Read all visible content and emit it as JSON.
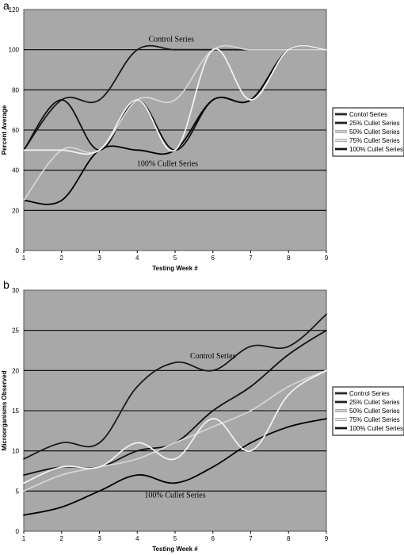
{
  "chart_data": [
    {
      "panel": "a",
      "type": "line",
      "title": "",
      "xlabel": "Testing Week #",
      "ylabel": "Percent Average",
      "xlim": [
        1,
        9
      ],
      "ylim": [
        0,
        120
      ],
      "xticks": [
        "1",
        "2",
        "3",
        "4",
        "5",
        "6",
        "7",
        "8",
        "9"
      ],
      "yticks": [
        "0",
        "20",
        "40",
        "60",
        "80",
        "100",
        "120"
      ],
      "grid": "horizontal",
      "legend_position": "right",
      "annotations": [
        {
          "text": "Control Series",
          "x": 4.9,
          "y": 104
        },
        {
          "text": "100% Cullet Series",
          "x": 4.8,
          "y": 42
        }
      ],
      "x": [
        1,
        2,
        3,
        4,
        5,
        6,
        7,
        8,
        9
      ],
      "series": [
        {
          "name": "Contol Series",
          "values": [
            50,
            75,
            75,
            100,
            100,
            100,
            100,
            100,
            100
          ],
          "color": "#1a1a1a"
        },
        {
          "name": "25% Cullet Series",
          "values": [
            50,
            75,
            50,
            75,
            50,
            75,
            75,
            100,
            100
          ],
          "color": "#101010"
        },
        {
          "name": "50% Cullet Series",
          "values": [
            25,
            50,
            50,
            75,
            75,
            100,
            100,
            100,
            100
          ],
          "color": "#d4d4d4"
        },
        {
          "name": "75% Cullet Series",
          "values": [
            50,
            50,
            50,
            75,
            50,
            100,
            75,
            100,
            100
          ],
          "color": "#f0f0f0"
        },
        {
          "name": "100% Cullet Series",
          "values": [
            25,
            25,
            50,
            50,
            50,
            75,
            75,
            100,
            100
          ],
          "color": "#000000"
        }
      ]
    },
    {
      "panel": "b",
      "type": "line",
      "title": "",
      "xlabel": "Testing Week #",
      "ylabel": "Microorganisms Observed",
      "xlim": [
        1,
        9
      ],
      "ylim": [
        0,
        30
      ],
      "xticks": [
        "1",
        "2",
        "3",
        "4",
        "5",
        "6",
        "7",
        "8",
        "9"
      ],
      "yticks": [
        "0",
        "5",
        "10",
        "15",
        "20",
        "25",
        "30"
      ],
      "grid": "horizontal",
      "legend_position": "right",
      "annotations": [
        {
          "text": "Control Series",
          "x": 6.0,
          "y": 21.5
        },
        {
          "text": "100% Cullet Series",
          "x": 5.0,
          "y": 4.2
        }
      ],
      "x": [
        1,
        2,
        3,
        4,
        5,
        6,
        7,
        8,
        9
      ],
      "series": [
        {
          "name": "Control Series",
          "values": [
            9,
            11,
            11,
            18,
            21,
            20,
            23,
            23,
            27
          ],
          "color": "#1a1a1a"
        },
        {
          "name": "25% Cullet Series",
          "values": [
            7,
            8,
            8,
            10,
            11,
            15,
            18,
            22,
            25
          ],
          "color": "#101010"
        },
        {
          "name": "50% Cullet Series",
          "values": [
            5,
            7,
            8,
            9,
            11,
            13,
            15,
            18,
            20
          ],
          "color": "#d4d4d4"
        },
        {
          "name": "75% Cullet Series",
          "values": [
            6,
            8,
            8,
            11,
            9,
            14,
            10,
            17,
            20
          ],
          "color": "#f0f0f0"
        },
        {
          "name": "100% Cullet Series",
          "values": [
            2,
            3,
            5,
            7,
            6,
            8,
            11,
            13,
            14
          ],
          "color": "#000000"
        }
      ]
    }
  ]
}
